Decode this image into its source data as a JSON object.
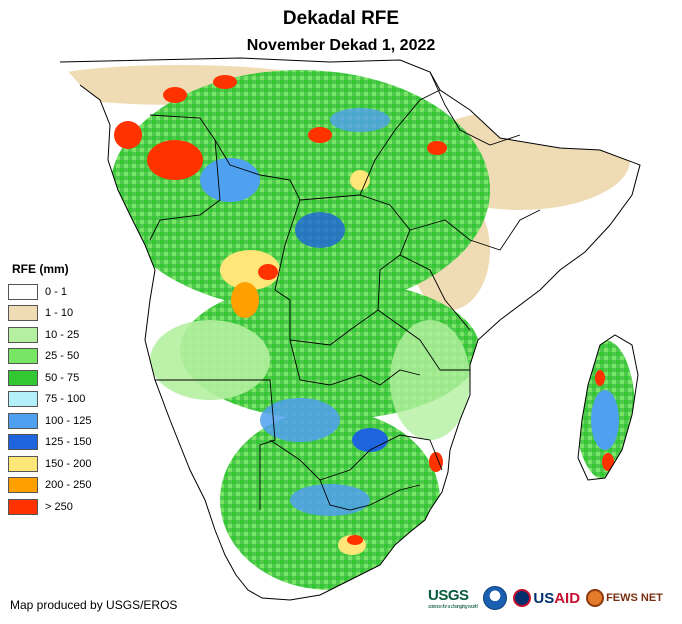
{
  "title": "Dekadal RFE",
  "subtitle": "November Dekad 1, 2022",
  "legend": {
    "title": "RFE (mm)",
    "classes": [
      {
        "label": "0 - 1",
        "color": "#ffffff"
      },
      {
        "label": "1 - 10",
        "color": "#f0dcb4"
      },
      {
        "label": "10 - 25",
        "color": "#b4f0a0"
      },
      {
        "label": "25 - 50",
        "color": "#78e664"
      },
      {
        "label": "50 - 75",
        "color": "#32c832"
      },
      {
        "label": "75 - 100",
        "color": "#b4f0fa"
      },
      {
        "label": "100 - 125",
        "color": "#50a0f0"
      },
      {
        "label": "125 - 150",
        "color": "#1e64dc"
      },
      {
        "label": "150 - 200",
        "color": "#ffe678"
      },
      {
        "label": "200 - 250",
        "color": "#ffa000"
      },
      {
        "label": "> 250",
        "color": "#ff3200"
      }
    ]
  },
  "credit": "Map produced by USGS/EROS",
  "logos": {
    "usgs": "USGS",
    "usgs_tagline": "science for a changing world",
    "usaid_us": "US",
    "usaid_aid": "AID",
    "fews": "FEWS NET"
  }
}
